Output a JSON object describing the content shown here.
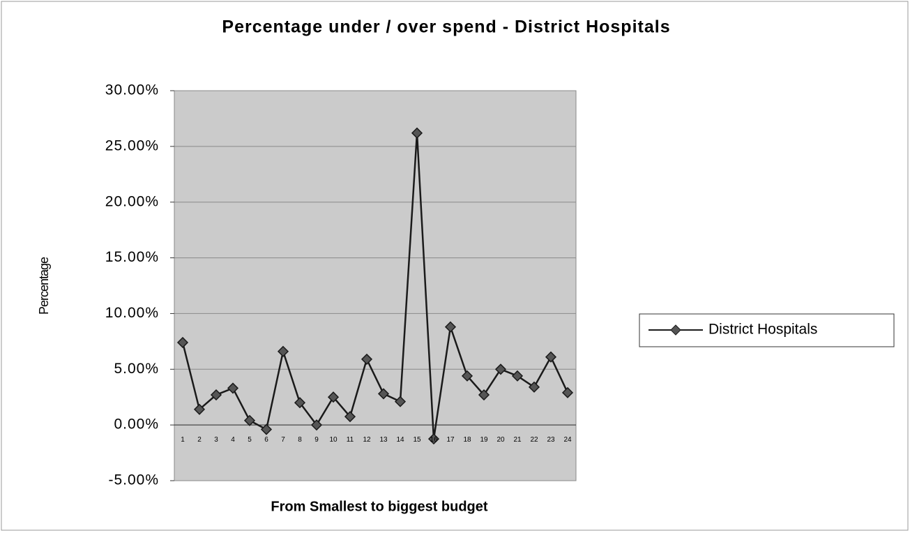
{
  "chart_data": {
    "type": "line",
    "title": "Percentage under / over spend - District Hospitals",
    "x_label": "From Smallest to biggest budget",
    "y_label": "Percentage",
    "categories": [
      "1",
      "2",
      "3",
      "4",
      "5",
      "6",
      "7",
      "8",
      "9",
      "10",
      "11",
      "12",
      "13",
      "14",
      "15",
      "16",
      "17",
      "18",
      "19",
      "20",
      "21",
      "22",
      "23",
      "24"
    ],
    "series": [
      {
        "name": "District Hospitals",
        "color": "#1a1a1a",
        "values": [
          7.4,
          1.4,
          2.7,
          3.3,
          0.4,
          -0.4,
          6.6,
          2.0,
          0,
          2.5,
          0.75,
          5.9,
          2.8,
          2.1,
          26.2,
          -1.25,
          8.8,
          4.4,
          2.7,
          5.0,
          4.4,
          3.4,
          6.1,
          2.9
        ]
      }
    ],
    "ylim": [
      -5,
      30
    ],
    "yticks": [
      {
        "value": -5,
        "label": "-5.00%"
      },
      {
        "value": 0,
        "label": "0.00%"
      },
      {
        "value": 5,
        "label": "5.00%"
      },
      {
        "value": 10,
        "label": "10.00%"
      },
      {
        "value": 15,
        "label": "15.00%"
      },
      {
        "value": 20,
        "label": "20.00%"
      },
      {
        "value": 25,
        "label": "25.00%"
      },
      {
        "value": 30,
        "label": "30.00%"
      }
    ],
    "grid": true,
    "legend": "right"
  }
}
